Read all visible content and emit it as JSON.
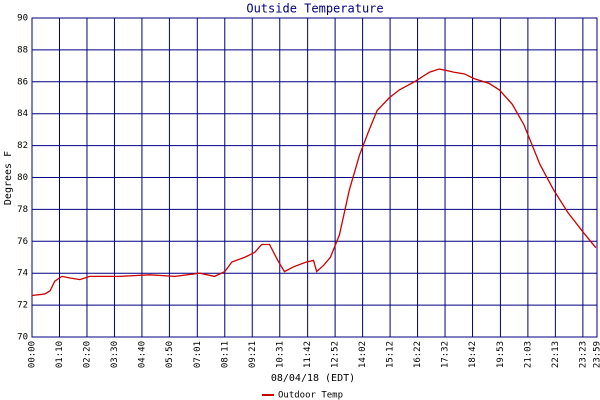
{
  "chart_data": {
    "type": "line",
    "title": "Outside Temperature",
    "x_label": "08/04/18 (EDT)",
    "y_label": "Degrees F",
    "x": [
      0,
      33,
      46,
      58,
      76,
      97,
      122,
      147,
      224,
      300,
      364,
      427,
      465,
      491,
      509,
      542,
      567,
      585,
      605,
      626,
      643,
      666,
      699,
      717,
      725,
      743,
      760,
      783,
      808,
      834,
      859,
      879,
      910,
      936,
      974,
      1012,
      1037,
      1057,
      1075,
      1101,
      1126,
      1164,
      1190,
      1223,
      1253,
      1294,
      1329,
      1365,
      1406,
      1436
    ],
    "series": [
      {
        "name": "Outdoor Temp",
        "color": "#cc0000",
        "values": [
          72.6,
          72.7,
          72.9,
          73.5,
          73.8,
          73.7,
          73.6,
          73.8,
          73.8,
          73.9,
          73.8,
          74.0,
          73.8,
          74.1,
          74.7,
          75.0,
          75.3,
          75.8,
          75.8,
          74.8,
          74.1,
          74.4,
          74.7,
          74.8,
          74.1,
          74.5,
          75.0,
          76.4,
          79.2,
          81.4,
          83.0,
          84.2,
          85.0,
          85.5,
          86.0,
          86.6,
          86.8,
          86.7,
          86.6,
          86.5,
          86.2,
          85.9,
          85.5,
          84.6,
          83.3,
          80.8,
          79.2,
          77.8,
          76.5,
          75.6
        ]
      }
    ],
    "xlim": [
      0,
      1439
    ],
    "xticks": [
      {
        "value": 0,
        "label": "00:00"
      },
      {
        "value": 70,
        "label": "01:10"
      },
      {
        "value": 140,
        "label": "02:20"
      },
      {
        "value": 210,
        "label": "03:30"
      },
      {
        "value": 280,
        "label": "04:40"
      },
      {
        "value": 350,
        "label": "05:50"
      },
      {
        "value": 421,
        "label": "07:01"
      },
      {
        "value": 491,
        "label": "08:11"
      },
      {
        "value": 561,
        "label": "09:21"
      },
      {
        "value": 631,
        "label": "10:31"
      },
      {
        "value": 702,
        "label": "11:42"
      },
      {
        "value": 772,
        "label": "12:52"
      },
      {
        "value": 842,
        "label": "14:02"
      },
      {
        "value": 912,
        "label": "15:12"
      },
      {
        "value": 982,
        "label": "16:22"
      },
      {
        "value": 1052,
        "label": "17:32"
      },
      {
        "value": 1122,
        "label": "18:42"
      },
      {
        "value": 1193,
        "label": "19:53"
      },
      {
        "value": 1263,
        "label": "21:03"
      },
      {
        "value": 1333,
        "label": "22:13"
      },
      {
        "value": 1403,
        "label": "23:23"
      },
      {
        "value": 1439,
        "label": "23:59"
      }
    ],
    "ylim": [
      70,
      90
    ],
    "yticks": [
      70,
      72,
      74,
      76,
      78,
      80,
      82,
      84,
      86,
      88,
      90
    ],
    "grid": true,
    "grid_color": "#000080",
    "legend": "bottom"
  }
}
